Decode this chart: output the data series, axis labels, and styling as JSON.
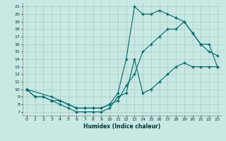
{
  "xlabel": "Humidex (Indice chaleur)",
  "xlim": [
    -0.5,
    23.5
  ],
  "ylim": [
    6.5,
    21.5
  ],
  "xticks": [
    0,
    1,
    2,
    3,
    4,
    5,
    6,
    7,
    8,
    9,
    10,
    11,
    12,
    13,
    14,
    15,
    16,
    17,
    18,
    19,
    20,
    21,
    22,
    23
  ],
  "yticks": [
    7,
    8,
    9,
    10,
    11,
    12,
    13,
    14,
    15,
    16,
    17,
    18,
    19,
    20,
    21
  ],
  "bg_color": "#c8e8e4",
  "grid_color": "#b0d0cc",
  "line_color": "#006868",
  "line1_x": [
    0,
    1,
    2,
    3,
    4,
    5,
    6,
    7,
    8,
    9,
    10,
    11,
    12,
    13,
    14,
    15,
    16,
    17,
    18,
    19,
    20,
    21,
    22,
    23
  ],
  "line1_y": [
    10,
    9,
    9,
    8.5,
    8.5,
    8,
    7.5,
    7.5,
    7.5,
    7.5,
    8,
    9.5,
    14,
    21,
    20,
    20,
    20.5,
    20,
    19.5,
    19,
    17.5,
    16,
    15,
    14.5
  ],
  "line2_x": [
    0,
    1,
    2,
    3,
    4,
    5,
    6,
    7,
    8,
    9,
    10,
    11,
    12,
    13,
    14,
    15,
    16,
    17,
    18,
    19,
    20,
    21,
    22,
    23
  ],
  "line2_y": [
    10,
    9,
    9,
    8.5,
    8,
    7.5,
    7,
    7,
    7,
    7,
    7.5,
    9,
    9.5,
    14,
    9.5,
    10,
    11,
    12,
    13,
    13.5,
    13,
    13,
    13,
    13
  ],
  "line3_x": [
    0,
    3,
    4,
    5,
    6,
    7,
    8,
    9,
    10,
    11,
    12,
    13,
    14,
    15,
    16,
    17,
    18,
    19,
    20,
    21,
    22,
    23
  ],
  "line3_y": [
    10,
    9,
    8.5,
    8,
    7.5,
    7.5,
    7.5,
    7.5,
    8,
    8.5,
    10.5,
    12,
    15,
    16,
    17,
    18,
    18,
    19,
    17.5,
    16,
    16,
    13
  ]
}
